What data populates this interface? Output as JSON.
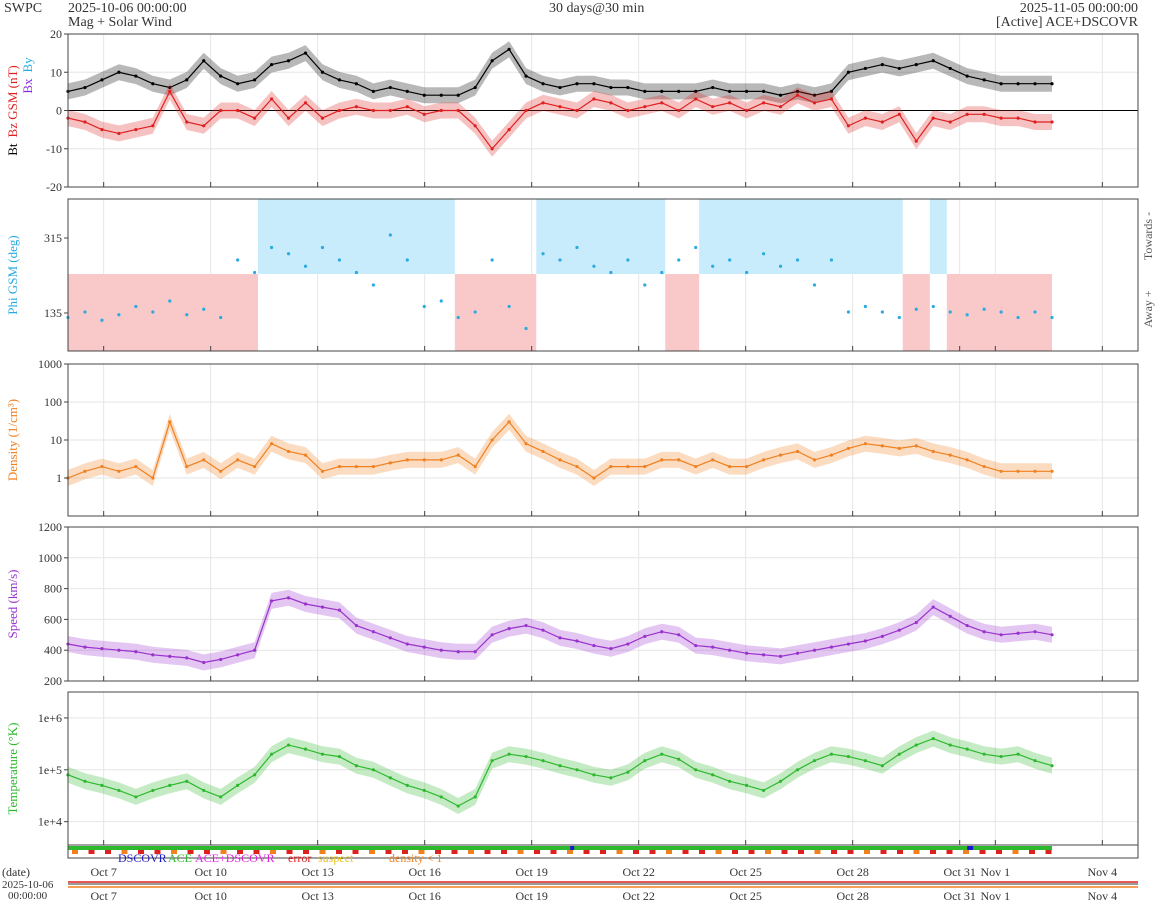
{
  "header": {
    "source": "SWPC",
    "start": "2025-10-06 00:00:00",
    "subtitle": "Mag + Solar Wind",
    "span": "30 days@30 min",
    "end": "2025-11-05 00:00:00",
    "active": "[Active] ACE+DSCOVR"
  },
  "legend": [
    {
      "label": "DSCOVR",
      "color": "#1a1acc"
    },
    {
      "label": "ACE",
      "color": "#2db82d"
    },
    {
      "label": "ACE+DSCOVR",
      "color": "#e020e0"
    },
    {
      "label": "error",
      "color": "#e02020"
    },
    {
      "label": "suspect",
      "color": "#e8c020"
    },
    {
      "label": "density < 1",
      "color": "#f08020"
    }
  ],
  "footer": {
    "date_label": "(date)",
    "date_value": "2025-10-06",
    "time_value": "00:00:00"
  },
  "x_ticks": [
    "Oct 7",
    "Oct 10",
    "Oct 13",
    "Oct 16",
    "Oct 19",
    "Oct 22",
    "Oct 25",
    "Oct 28",
    "Oct 31",
    "Nov 1",
    "Nov 4"
  ],
  "chart_data": [
    {
      "type": "line",
      "panel": "mag",
      "ylabel_parts": [
        {
          "text": "Bt",
          "color": "#000000"
        },
        {
          "text": "Bz GSM (nT)",
          "color": "#e02020"
        }
      ],
      "ylabel2_parts": [
        {
          "text": "Bx",
          "color": "#8a2be2"
        },
        {
          "text": "By",
          "color": "#29abe2"
        }
      ],
      "ylim": [
        -20,
        20
      ],
      "yticks": [
        "20",
        "10",
        "0",
        "-10",
        "-20"
      ],
      "series": [
        {
          "color": "#000000",
          "x": [
            0,
            0.5,
            1,
            1.5,
            2,
            2.5,
            3,
            3.5,
            4,
            4.5,
            5,
            5.5,
            6,
            6.5,
            7,
            7.5,
            8,
            8.5,
            9,
            9.5,
            10,
            10.5,
            11,
            11.5,
            12,
            12.5,
            13,
            13.5,
            14,
            14.5,
            15,
            15.5,
            16,
            16.5,
            17,
            17.5,
            18,
            18.5,
            19,
            19.5,
            20,
            20.5,
            21,
            21.5,
            22,
            22.5,
            23,
            23.5,
            24,
            24.5,
            25,
            25.5,
            26,
            26.5,
            27,
            27.5,
            28,
            28.5,
            29
          ],
          "values": [
            5,
            6,
            8,
            10,
            9,
            7,
            6,
            8,
            13,
            9,
            7,
            8,
            12,
            13,
            15,
            10,
            8,
            7,
            5,
            6,
            5,
            4,
            4,
            4,
            6,
            13,
            16,
            9,
            7,
            6,
            7,
            7,
            6,
            6,
            5,
            5,
            5,
            5,
            6,
            5,
            5,
            5,
            4,
            5,
            4,
            5,
            10,
            11,
            12,
            11,
            12,
            13,
            11,
            9,
            8,
            7,
            7,
            7,
            7
          ]
        },
        {
          "color": "#e02020",
          "x": [
            0,
            0.5,
            1,
            1.5,
            2,
            2.5,
            3,
            3.5,
            4,
            4.5,
            5,
            5.5,
            6,
            6.5,
            7,
            7.5,
            8,
            8.5,
            9,
            9.5,
            10,
            10.5,
            11,
            11.5,
            12,
            12.5,
            13,
            13.5,
            14,
            14.5,
            15,
            15.5,
            16,
            16.5,
            17,
            17.5,
            18,
            18.5,
            19,
            19.5,
            20,
            20.5,
            21,
            21.5,
            22,
            22.5,
            23,
            23.5,
            24,
            24.5,
            25,
            25.5,
            26,
            26.5,
            27,
            27.5,
            28,
            28.5,
            29
          ],
          "values": [
            -2,
            -3,
            -5,
            -6,
            -5,
            -4,
            5,
            -3,
            -4,
            0,
            0,
            -2,
            3,
            -2,
            2,
            -2,
            0,
            1,
            0,
            0,
            1,
            -1,
            0,
            0,
            -4,
            -10,
            -5,
            0,
            2,
            1,
            0,
            3,
            2,
            0,
            1,
            2,
            0,
            3,
            1,
            2,
            0,
            2,
            1,
            4,
            2,
            3,
            -4,
            -2,
            -3,
            -1,
            -8,
            -2,
            -3,
            -1,
            -1,
            -2,
            -2,
            -3,
            -3
          ]
        }
      ]
    },
    {
      "type": "scatter",
      "panel": "phi",
      "ylabel": "Phi GSM (deg)",
      "yticks": [
        "315",
        "135"
      ],
      "right_labels": [
        "Towards -",
        "Away +"
      ],
      "series": [
        {
          "color": "#29abe2",
          "x": [
            0,
            0.5,
            1,
            1.5,
            2,
            2.5,
            3,
            3.5,
            4,
            4.5,
            5,
            5.5,
            6,
            6.5,
            7,
            7.5,
            8,
            8.5,
            9,
            9.5,
            10,
            10.5,
            11,
            11.5,
            12,
            12.5,
            13,
            13.5,
            14,
            14.5,
            15,
            15.5,
            16,
            16.5,
            17,
            17.5,
            18,
            18.5,
            19,
            19.5,
            20,
            20.5,
            21,
            21.5,
            22,
            22.5,
            23,
            23.5,
            24,
            24.5,
            25,
            25.5,
            26,
            26.5,
            27,
            27.5,
            28,
            28.5,
            29
          ],
          "values": [
            130,
            140,
            125,
            135,
            150,
            140,
            160,
            135,
            145,
            130,
            320,
            310,
            330,
            325,
            315,
            330,
            320,
            310,
            300,
            340,
            320,
            150,
            160,
            130,
            140,
            320,
            150,
            110,
            325,
            320,
            330,
            315,
            310,
            320,
            300,
            310,
            320,
            330,
            315,
            320,
            310,
            325,
            315,
            320,
            300,
            320,
            140,
            150,
            140,
            130,
            145,
            150,
            140,
            135,
            145,
            140,
            130,
            140,
            130
          ]
        }
      ]
    },
    {
      "type": "line",
      "panel": "density",
      "ylabel": "Density (1/cm³)",
      "yscale": "log",
      "ylim": [
        0.1,
        1000
      ],
      "yticks": [
        "1000",
        "100",
        "10",
        "1"
      ],
      "series": [
        {
          "color": "#f08020",
          "x": [
            0,
            0.5,
            1,
            1.5,
            2,
            2.5,
            3,
            3.5,
            4,
            4.5,
            5,
            5.5,
            6,
            6.5,
            7,
            7.5,
            8,
            8.5,
            9,
            9.5,
            10,
            10.5,
            11,
            11.5,
            12,
            12.5,
            13,
            13.5,
            14,
            14.5,
            15,
            15.5,
            16,
            16.5,
            17,
            17.5,
            18,
            18.5,
            19,
            19.5,
            20,
            20.5,
            21,
            21.5,
            22,
            22.5,
            23,
            23.5,
            24,
            24.5,
            25,
            25.5,
            26,
            26.5,
            27,
            27.5,
            28,
            28.5,
            29
          ],
          "values": [
            1,
            1.5,
            2,
            1.5,
            2,
            1,
            30,
            2,
            3,
            1.5,
            3,
            2,
            8,
            5,
            4,
            1.5,
            2,
            2,
            2,
            2.5,
            3,
            3,
            3,
            4,
            2,
            10,
            30,
            8,
            5,
            3,
            2,
            1,
            2,
            2,
            2,
            3,
            3,
            2,
            3,
            2,
            2,
            3,
            4,
            5,
            3,
            4,
            6,
            8,
            7,
            6,
            7,
            5,
            4,
            3,
            2,
            1.5,
            1.5,
            1.5,
            1.5
          ]
        }
      ]
    },
    {
      "type": "line",
      "panel": "speed",
      "ylabel": "Speed (km/s)",
      "ylim": [
        200,
        1200
      ],
      "yticks": [
        "1200",
        "1000",
        "800",
        "600",
        "400",
        "200"
      ],
      "series": [
        {
          "color": "#9932cc",
          "x": [
            0,
            0.5,
            1,
            1.5,
            2,
            2.5,
            3,
            3.5,
            4,
            4.5,
            5,
            5.5,
            6,
            6.5,
            7,
            7.5,
            8,
            8.5,
            9,
            9.5,
            10,
            10.5,
            11,
            11.5,
            12,
            12.5,
            13,
            13.5,
            14,
            14.5,
            15,
            15.5,
            16,
            16.5,
            17,
            17.5,
            18,
            18.5,
            19,
            19.5,
            20,
            20.5,
            21,
            21.5,
            22,
            22.5,
            23,
            23.5,
            24,
            24.5,
            25,
            25.5,
            26,
            26.5,
            27,
            27.5,
            28,
            28.5,
            29
          ],
          "values": [
            440,
            420,
            410,
            400,
            390,
            370,
            360,
            350,
            320,
            340,
            370,
            400,
            720,
            740,
            700,
            680,
            660,
            560,
            520,
            480,
            440,
            420,
            400,
            390,
            390,
            500,
            540,
            560,
            530,
            480,
            460,
            430,
            410,
            440,
            490,
            520,
            500,
            430,
            420,
            400,
            380,
            370,
            360,
            380,
            400,
            420,
            440,
            460,
            490,
            530,
            580,
            680,
            620,
            560,
            520,
            500,
            510,
            520,
            500
          ]
        }
      ]
    },
    {
      "type": "line",
      "panel": "temperature",
      "ylabel": "Temperature (°K)",
      "yscale": "log",
      "yticks": [
        "1e+6",
        "1e+5",
        "1e+4"
      ],
      "series": [
        {
          "color": "#2db82d",
          "x": [
            0,
            0.5,
            1,
            1.5,
            2,
            2.5,
            3,
            3.5,
            4,
            4.5,
            5,
            5.5,
            6,
            6.5,
            7,
            7.5,
            8,
            8.5,
            9,
            9.5,
            10,
            10.5,
            11,
            11.5,
            12,
            12.5,
            13,
            13.5,
            14,
            14.5,
            15,
            15.5,
            16,
            16.5,
            17,
            17.5,
            18,
            18.5,
            19,
            19.5,
            20,
            20.5,
            21,
            21.5,
            22,
            22.5,
            23,
            23.5,
            24,
            24.5,
            25,
            25.5,
            26,
            26.5,
            27,
            27.5,
            28,
            28.5,
            29
          ],
          "values": [
            80000,
            60000,
            50000,
            40000,
            30000,
            40000,
            50000,
            60000,
            40000,
            30000,
            50000,
            80000,
            200000,
            300000,
            250000,
            200000,
            180000,
            120000,
            100000,
            70000,
            50000,
            40000,
            30000,
            20000,
            30000,
            150000,
            200000,
            180000,
            150000,
            120000,
            100000,
            80000,
            70000,
            90000,
            150000,
            200000,
            160000,
            100000,
            80000,
            60000,
            50000,
            40000,
            60000,
            100000,
            150000,
            200000,
            180000,
            150000,
            120000,
            200000,
            300000,
            400000,
            300000,
            250000,
            200000,
            180000,
            200000,
            150000,
            120000
          ]
        }
      ]
    }
  ]
}
